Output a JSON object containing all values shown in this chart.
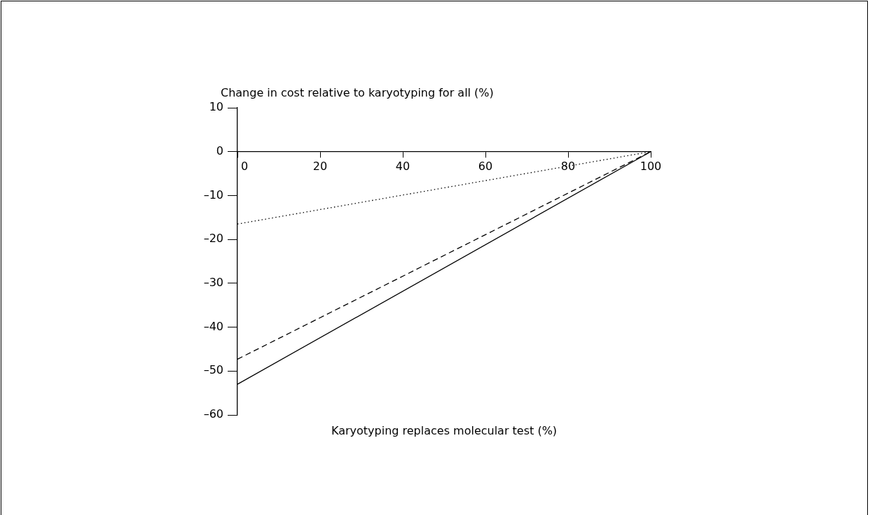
{
  "chart_data": {
    "type": "line",
    "ylabel": "Change in cost relative to karyotyping for all (%)",
    "xlabel": "Karyotyping replaces molecular test (%)",
    "xlim": [
      0,
      100
    ],
    "xticks": [
      0,
      20,
      40,
      60,
      80,
      100
    ],
    "ylim": [
      -60,
      10
    ],
    "yticks": [
      10,
      0,
      {
        "value": -10,
        "label": "–10"
      },
      {
        "value": -20,
        "label": "–20"
      },
      {
        "value": -30,
        "label": "–30"
      },
      {
        "value": -40,
        "label": "–40"
      },
      {
        "value": -50,
        "label": "–50"
      },
      {
        "value": -60,
        "label": "–60"
      }
    ],
    "legend": false,
    "marker": "none",
    "x": [
      0,
      100
    ],
    "series": [
      {
        "color": "#000000",
        "line_style": "dotted",
        "values": [
          -16.5,
          0
        ]
      },
      {
        "color": "#000000",
        "line_style": "dashed",
        "values": [
          -47.3,
          0
        ]
      },
      {
        "color": "#000000",
        "line_style": "solid",
        "values": [
          -53,
          0
        ]
      }
    ]
  }
}
